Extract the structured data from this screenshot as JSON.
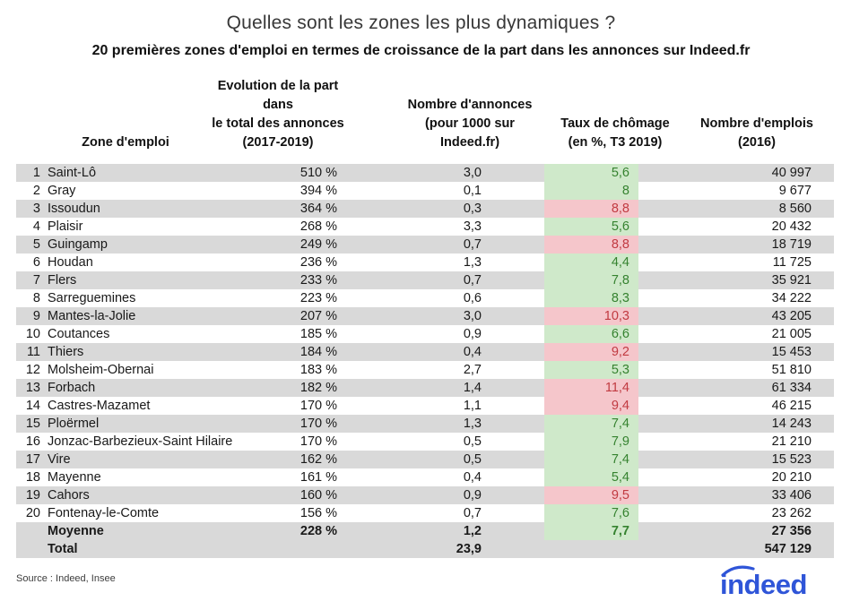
{
  "title": "Quelles sont les zones les plus dynamiques ?",
  "subtitle": "20 premières zones d'emploi en termes de croissance de la part dans les annonces sur Indeed.fr",
  "chart_data": {
    "type": "table",
    "title": "Quelles sont les zones les plus dynamiques ?",
    "subtitle": "20 premières zones d'emploi en termes de croissance de la part dans les annonces sur Indeed.fr",
    "headers": {
      "zone": "Zone d'emploi",
      "evolution_lines": [
        "Evolution de la part",
        "dans",
        "le total des annonces",
        "(2017-2019)"
      ],
      "annonces_lines": [
        "Nombre d'annonces",
        "(pour 1000 sur",
        "Indeed.fr)"
      ],
      "chomage_lines": [
        "Taux de chômage",
        "(en %, T3 2019)"
      ],
      "emplois_lines": [
        "Nombre d'emplois",
        "(2016)"
      ]
    },
    "rows": [
      {
        "rank": "1",
        "zone": "Saint-Lô",
        "evolution": "510 %",
        "annonces": "3,0",
        "chomage": "5,6",
        "chomage_status": "good",
        "emplois": "40 997"
      },
      {
        "rank": "2",
        "zone": "Gray",
        "evolution": "394 %",
        "annonces": "0,1",
        "chomage": "8",
        "chomage_status": "good",
        "emplois": "9 677"
      },
      {
        "rank": "3",
        "zone": "Issoudun",
        "evolution": "364 %",
        "annonces": "0,3",
        "chomage": "8,8",
        "chomage_status": "bad",
        "emplois": "8 560"
      },
      {
        "rank": "4",
        "zone": "Plaisir",
        "evolution": "268 %",
        "annonces": "3,3",
        "chomage": "5,6",
        "chomage_status": "good",
        "emplois": "20 432"
      },
      {
        "rank": "5",
        "zone": "Guingamp",
        "evolution": "249 %",
        "annonces": "0,7",
        "chomage": "8,8",
        "chomage_status": "bad",
        "emplois": "18 719"
      },
      {
        "rank": "6",
        "zone": "Houdan",
        "evolution": "236 %",
        "annonces": "1,3",
        "chomage": "4,4",
        "chomage_status": "good",
        "emplois": "11 725"
      },
      {
        "rank": "7",
        "zone": "Flers",
        "evolution": "233 %",
        "annonces": "0,7",
        "chomage": "7,8",
        "chomage_status": "good",
        "emplois": "35 921"
      },
      {
        "rank": "8",
        "zone": "Sarreguemines",
        "evolution": "223 %",
        "annonces": "0,6",
        "chomage": "8,3",
        "chomage_status": "good",
        "emplois": "34 222"
      },
      {
        "rank": "9",
        "zone": "Mantes-la-Jolie",
        "evolution": "207 %",
        "annonces": "3,0",
        "chomage": "10,3",
        "chomage_status": "bad",
        "emplois": "43 205"
      },
      {
        "rank": "10",
        "zone": "Coutances",
        "evolution": "185 %",
        "annonces": "0,9",
        "chomage": "6,6",
        "chomage_status": "good",
        "emplois": "21 005"
      },
      {
        "rank": "11",
        "zone": "Thiers",
        "evolution": "184 %",
        "annonces": "0,4",
        "chomage": "9,2",
        "chomage_status": "bad",
        "emplois": "15 453"
      },
      {
        "rank": "12",
        "zone": "Molsheim-Obernai",
        "evolution": "183 %",
        "annonces": "2,7",
        "chomage": "5,3",
        "chomage_status": "good",
        "emplois": "51 810"
      },
      {
        "rank": "13",
        "zone": "Forbach",
        "evolution": "182 %",
        "annonces": "1,4",
        "chomage": "11,4",
        "chomage_status": "bad",
        "emplois": "61 334"
      },
      {
        "rank": "14",
        "zone": "Castres-Mazamet",
        "evolution": "170 %",
        "annonces": "1,1",
        "chomage": "9,4",
        "chomage_status": "bad",
        "emplois": "46 215"
      },
      {
        "rank": "15",
        "zone": "Ploërmel",
        "evolution": "170 %",
        "annonces": "1,3",
        "chomage": "7,4",
        "chomage_status": "good",
        "emplois": "14 243"
      },
      {
        "rank": "16",
        "zone": "Jonzac-Barbezieux-Saint Hilaire",
        "evolution": "170 %",
        "annonces": "0,5",
        "chomage": "7,9",
        "chomage_status": "good",
        "emplois": "21 210"
      },
      {
        "rank": "17",
        "zone": "Vire",
        "evolution": "162 %",
        "annonces": "0,5",
        "chomage": "7,4",
        "chomage_status": "good",
        "emplois": "15 523"
      },
      {
        "rank": "18",
        "zone": "Mayenne",
        "evolution": "161 %",
        "annonces": "0,4",
        "chomage": "5,4",
        "chomage_status": "good",
        "emplois": "20 210"
      },
      {
        "rank": "19",
        "zone": "Cahors",
        "evolution": "160 %",
        "annonces": "0,9",
        "chomage": "9,5",
        "chomage_status": "bad",
        "emplois": "33 406"
      },
      {
        "rank": "20",
        "zone": "Fontenay-le-Comte",
        "evolution": "156 %",
        "annonces": "0,7",
        "chomage": "7,6",
        "chomage_status": "good",
        "emplois": "23 262"
      }
    ],
    "summary_rows": [
      {
        "rank": "",
        "zone": "Moyenne",
        "evolution": "228 %",
        "annonces": "1,2",
        "chomage": "7,7",
        "chomage_status": "good",
        "emplois": "27 356"
      },
      {
        "rank": "",
        "zone": "Total",
        "evolution": "",
        "annonces": "23,9",
        "chomage": "",
        "chomage_status": "none",
        "emplois": "547 129"
      }
    ]
  },
  "footer": {
    "source_label": "Source : Indeed, Insee",
    "logo_text": "indeed"
  },
  "colors": {
    "row_stripe": "#d9d9d9",
    "chomage_good_bg": "#cfe9ca",
    "chomage_good_text": "#35822f",
    "chomage_bad_bg": "#f5c6cb",
    "chomage_bad_text": "#c13a41",
    "logo_blue": "#2f55d8"
  }
}
